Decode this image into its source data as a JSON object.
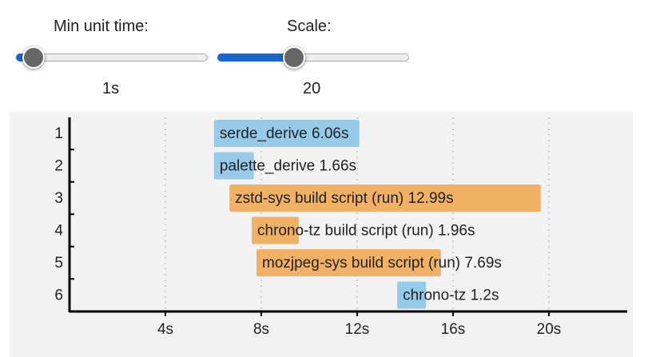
{
  "controls": {
    "min_unit_time": {
      "label": "Min unit time:",
      "value": "1s"
    },
    "scale": {
      "label": "Scale:",
      "value": "20"
    }
  },
  "chart_data": {
    "type": "gantt",
    "categories": [
      "1",
      "2",
      "3",
      "4",
      "5",
      "6"
    ],
    "starts": [
      6.03,
      6.03,
      6.67,
      7.6,
      7.8,
      13.67
    ],
    "values": [
      6.06,
      1.66,
      12.99,
      1.96,
      7.69,
      1.2
    ],
    "value_labels": [
      "serde_derive 6.06s",
      "palette_derive 1.66s",
      "zstd-sys build script (run) 12.99s",
      "chrono-tz build script (run) 1.96s",
      "mozjpeg-sys build script (run) 7.69s",
      "chrono-tz 1.2s"
    ],
    "colors": [
      "#95cae8",
      "#95cae8",
      "#f0b165",
      "#f0b165",
      "#f0b165",
      "#95cae8"
    ],
    "xlim": [
      0,
      23.4
    ],
    "xticks": [
      {
        "value": 4,
        "label": "4s"
      },
      {
        "value": 8,
        "label": "8s"
      },
      {
        "value": 12,
        "label": "12s"
      },
      {
        "value": 16,
        "label": "16s"
      },
      {
        "value": 20,
        "label": "20s"
      }
    ],
    "grid": true
  }
}
